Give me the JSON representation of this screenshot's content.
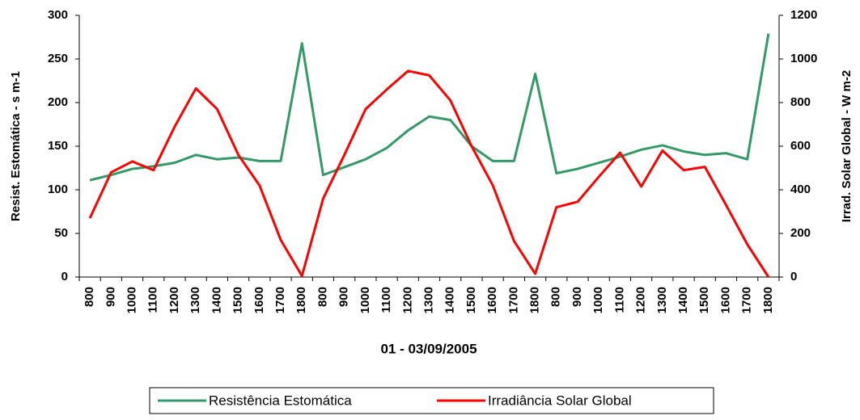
{
  "chart_data": {
    "type": "line",
    "x_label": "01 - 03/09/2005",
    "y_label": "Resist. Estomática - s m-1",
    "y2_label": "Irrad. Solar Global - W m-2",
    "categories": [
      "800",
      "900",
      "1000",
      "1100",
      "1200",
      "1300",
      "1400",
      "1500",
      "1600",
      "1700",
      "1800",
      "800",
      "900",
      "1000",
      "1100",
      "1200",
      "1300",
      "1400",
      "1500",
      "1600",
      "1700",
      "1800",
      "800",
      "900",
      "1000",
      "1100",
      "1200",
      "1300",
      "1400",
      "1500",
      "1600",
      "1700",
      "1800"
    ],
    "series": [
      {
        "name": "Resistência Estomática",
        "color": "#339966",
        "values": [
          111,
          117,
          124,
          127,
          131,
          140,
          135,
          137,
          133,
          133,
          268,
          117,
          126,
          135,
          148,
          168,
          184,
          180,
          150,
          133,
          133,
          233,
          119,
          124,
          131,
          138,
          146,
          151,
          144,
          140,
          142,
          135,
          279
        ]
      },
      {
        "name": "Irradiância Solar Global",
        "color": "#ff0000",
        "axis": "y2",
        "values": [
          270,
          480,
          530,
          490,
          690,
          865,
          770,
          560,
          420,
          170,
          5,
          360,
          560,
          770,
          860,
          945,
          925,
          810,
          600,
          420,
          165,
          15,
          320,
          345,
          460,
          570,
          415,
          580,
          490,
          505,
          330,
          150,
          0
        ]
      }
    ],
    "ylim": [
      0,
      300
    ],
    "yticks": [
      0,
      50,
      100,
      150,
      200,
      250,
      300
    ],
    "y2lim": [
      0,
      1200
    ],
    "y2ticks": [
      0,
      200,
      400,
      600,
      800,
      1000,
      1200
    ],
    "grid": false
  }
}
